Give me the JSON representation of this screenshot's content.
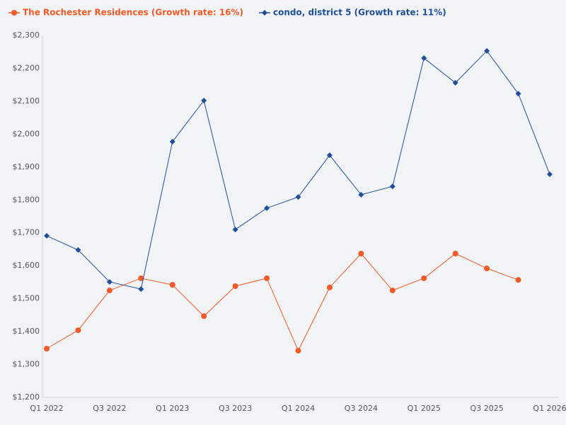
{
  "chart_data": {
    "type": "line",
    "categories": [
      "Q1 2022",
      null,
      "Q3 2022",
      null,
      "Q1 2023",
      null,
      "Q3 2023",
      null,
      "Q1 2024",
      null,
      "Q3 2024",
      null,
      "Q1 2025",
      null,
      "Q3 2025",
      null,
      "Q1 2026"
    ],
    "series": [
      {
        "name": "The Rochester Residences (Growth rate: 16%)",
        "color": "#f05a28",
        "marker": "circle",
        "values": [
          1348,
          1404,
          1525,
          1562,
          1542,
          1447,
          1538,
          1562,
          1342,
          1534,
          1637,
          1525,
          1562,
          1637,
          1592,
          1557,
          null
        ]
      },
      {
        "name": "condo, district 5 (Growth rate: 11%)",
        "color": "#1f4e99",
        "marker": "diamond",
        "values": [
          1691,
          1648,
          1551,
          1529,
          1977,
          2102,
          1710,
          1775,
          1809,
          1936,
          1816,
          1841,
          2231,
          2156,
          2253,
          2123,
          1878
        ]
      }
    ],
    "ylim": [
      1200,
      2300
    ],
    "yticks": [
      {
        "value": 1200,
        "label": "$1,200"
      },
      {
        "value": 1300,
        "label": "$1,300"
      },
      {
        "value": 1400,
        "label": "$1,400"
      },
      {
        "value": 1500,
        "label": "$1,500"
      },
      {
        "value": 1600,
        "label": "$1,600"
      },
      {
        "value": 1700,
        "label": "$1,700"
      },
      {
        "value": 1800,
        "label": "$1,800"
      },
      {
        "value": 1900,
        "label": "$1,900"
      },
      {
        "value": 2000,
        "label": "$2,000"
      },
      {
        "value": 2100,
        "label": "$2,100"
      },
      {
        "value": 2200,
        "label": "$2,200"
      },
      {
        "value": 2300,
        "label": "$2,300"
      }
    ],
    "grid": false,
    "legend": "top-left"
  }
}
